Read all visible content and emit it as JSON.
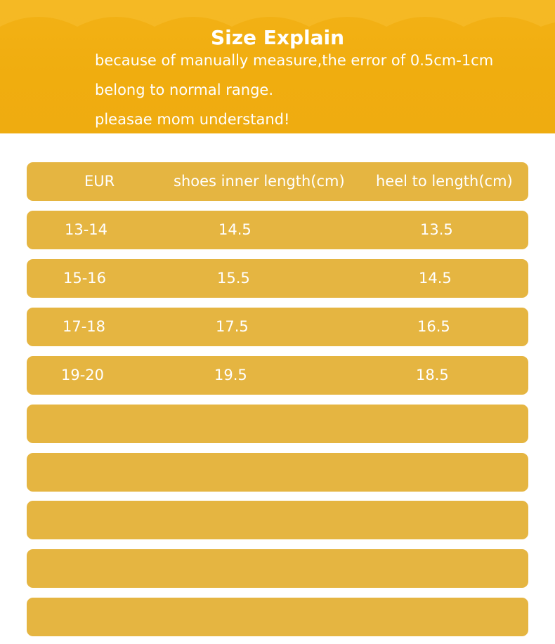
{
  "banner": {
    "title": "Size Explain",
    "notes": [
      "because of manually measure,the error of 0.5cm-1cm",
      "belong to normal range.",
      "pleasae mom understand!"
    ]
  },
  "table": {
    "headers": [
      "EUR",
      "shoes inner length(cm)",
      "heel to length(cm)"
    ],
    "rows": [
      [
        "13-14",
        "14.5",
        "13.5"
      ],
      [
        "15-16",
        "15.5",
        "14.5"
      ],
      [
        "17-18",
        "17.5",
        "16.5"
      ],
      [
        "19-20",
        "19.5",
        "18.5"
      ]
    ]
  },
  "colors": {
    "banner": "#f0ad0f",
    "row": "#e5b541",
    "text": "#ffffff"
  }
}
